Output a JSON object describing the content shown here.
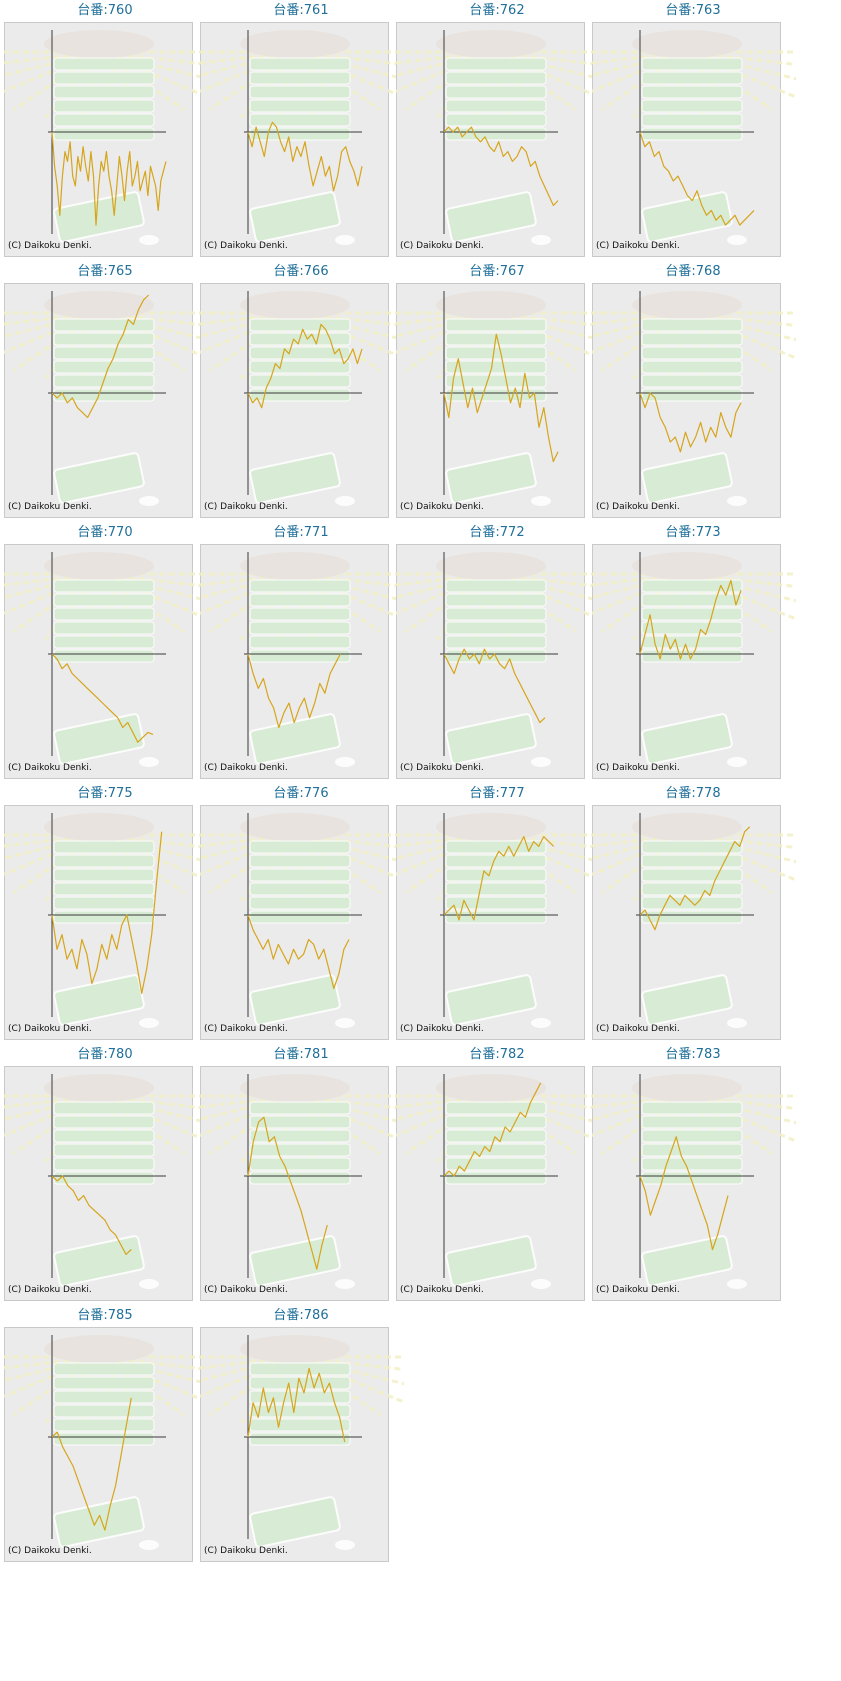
{
  "colors": {
    "background": "#ebebeb",
    "frame": "#c9c9c9",
    "line": "#d6a51c",
    "axis": "#3a3a3a",
    "title": "#1f6f9a",
    "watermark_green": "#d5ecd0",
    "watermark_rays": "#f3f0c4"
  },
  "chart_data": [
    {
      "title": "台番:760",
      "copyright": "(C) Daikoku Denki.",
      "type": "line",
      "y": [
        0.0,
        -0.35,
        -0.55,
        -0.85,
        -0.45,
        -0.2,
        -0.3,
        -0.1,
        -0.45,
        -0.55,
        -0.25,
        -0.4,
        -0.15,
        -0.35,
        -0.5,
        -0.2,
        -0.45,
        -0.95,
        -0.55,
        -0.3,
        -0.4,
        -0.2,
        -0.45,
        -0.6,
        -0.85,
        -0.55,
        -0.25,
        -0.45,
        -0.7,
        -0.4,
        -0.2,
        -0.55,
        -0.45,
        -0.3,
        -0.6,
        -0.5,
        -0.4,
        -0.65,
        -0.35,
        -0.45,
        -0.55,
        -0.8,
        -0.5,
        -0.4,
        -0.3
      ]
    },
    {
      "title": "台番:761",
      "copyright": "(C) Daikoku Denki.",
      "type": "line",
      "y": [
        0.0,
        -0.15,
        0.05,
        -0.1,
        -0.25,
        0.0,
        0.1,
        0.05,
        -0.1,
        -0.2,
        -0.05,
        -0.3,
        -0.15,
        -0.25,
        -0.1,
        -0.35,
        -0.55,
        -0.4,
        -0.25,
        -0.45,
        -0.35,
        -0.6,
        -0.45,
        -0.2,
        -0.15,
        -0.3,
        -0.4,
        -0.55,
        -0.35
      ]
    },
    {
      "title": "台番:762",
      "copyright": "(C) Daikoku Denki.",
      "type": "line",
      "y": [
        0.0,
        0.05,
        0.0,
        0.05,
        -0.05,
        0.0,
        0.05,
        -0.05,
        -0.1,
        -0.05,
        -0.15,
        -0.2,
        -0.1,
        -0.25,
        -0.2,
        -0.3,
        -0.25,
        -0.15,
        -0.2,
        -0.35,
        -0.3,
        -0.45,
        -0.55,
        -0.65,
        -0.75,
        -0.7
      ]
    },
    {
      "title": "台番:763",
      "copyright": "(C) Daikoku Denki.",
      "type": "line",
      "y": [
        0.0,
        -0.15,
        -0.1,
        -0.25,
        -0.2,
        -0.35,
        -0.4,
        -0.5,
        -0.45,
        -0.55,
        -0.65,
        -0.7,
        -0.6,
        -0.75,
        -0.85,
        -0.8,
        -0.9,
        -0.85,
        -0.95,
        -0.9,
        -0.85,
        -0.95,
        -0.9,
        -0.85,
        -0.8
      ]
    },
    {
      "title": "台番:765",
      "copyright": "(C) Daikoku Denki.",
      "type": "line",
      "y": [
        0.0,
        -0.05,
        0.0,
        -0.1,
        -0.05,
        -0.15,
        -0.2,
        -0.25,
        -0.15,
        -0.05,
        0.1,
        0.25,
        0.35,
        0.5,
        0.6,
        0.75,
        0.7,
        0.85,
        0.95,
        1.0
      ]
    },
    {
      "title": "台番:766",
      "copyright": "(C) Daikoku Denki.",
      "type": "line",
      "y": [
        0.0,
        -0.1,
        -0.05,
        -0.15,
        0.05,
        0.15,
        0.3,
        0.25,
        0.45,
        0.4,
        0.55,
        0.5,
        0.65,
        0.55,
        0.6,
        0.5,
        0.7,
        0.65,
        0.55,
        0.4,
        0.45,
        0.3,
        0.35,
        0.45,
        0.3,
        0.45
      ]
    },
    {
      "title": "台番:767",
      "copyright": "(C) Daikoku Denki.",
      "type": "line",
      "y": [
        0.0,
        -0.25,
        0.15,
        0.35,
        0.1,
        -0.15,
        0.05,
        -0.2,
        -0.05,
        0.1,
        0.25,
        0.6,
        0.4,
        0.15,
        -0.1,
        0.05,
        -0.15,
        0.2,
        -0.05,
        0.0,
        -0.35,
        -0.15,
        -0.45,
        -0.7,
        -0.6
      ]
    },
    {
      "title": "台番:768",
      "copyright": "(C) Daikoku Denki.",
      "type": "line",
      "y": [
        0.0,
        -0.15,
        0.0,
        -0.05,
        -0.25,
        -0.35,
        -0.5,
        -0.45,
        -0.6,
        -0.4,
        -0.55,
        -0.45,
        -0.3,
        -0.5,
        -0.35,
        -0.45,
        -0.2,
        -0.35,
        -0.45,
        -0.2,
        -0.1
      ]
    },
    {
      "title": "台番:770",
      "copyright": "(C) Daikoku Denki.",
      "type": "line",
      "y": [
        0.0,
        -0.05,
        -0.15,
        -0.1,
        -0.2,
        -0.25,
        -0.3,
        -0.35,
        -0.4,
        -0.45,
        -0.5,
        -0.55,
        -0.6,
        -0.65,
        -0.75,
        -0.7,
        -0.8,
        -0.9,
        -0.85,
        -0.8,
        -0.82
      ]
    },
    {
      "title": "台番:771",
      "copyright": "(C) Daikoku Denki.",
      "type": "line",
      "y": [
        0.0,
        -0.2,
        -0.35,
        -0.25,
        -0.45,
        -0.55,
        -0.75,
        -0.6,
        -0.5,
        -0.7,
        -0.55,
        -0.45,
        -0.65,
        -0.5,
        -0.3,
        -0.4,
        -0.2,
        -0.1,
        0.0
      ]
    },
    {
      "title": "台番:772",
      "copyright": "(C) Daikoku Denki.",
      "type": "line",
      "y": [
        0.0,
        -0.1,
        -0.2,
        -0.05,
        0.05,
        -0.05,
        0.0,
        -0.1,
        0.05,
        -0.05,
        0.0,
        -0.1,
        -0.15,
        -0.05,
        -0.2,
        -0.3,
        -0.4,
        -0.5,
        -0.6,
        -0.7,
        -0.65
      ]
    },
    {
      "title": "台番:773",
      "copyright": "(C) Daikoku Denki.",
      "type": "line",
      "y": [
        0.0,
        0.2,
        0.4,
        0.1,
        -0.05,
        0.2,
        0.05,
        0.15,
        -0.05,
        0.1,
        -0.05,
        0.05,
        0.25,
        0.2,
        0.35,
        0.55,
        0.7,
        0.6,
        0.75,
        0.5,
        0.65
      ]
    },
    {
      "title": "台番:775",
      "copyright": "(C) Daikoku Denki.",
      "type": "line",
      "y": [
        0.0,
        -0.35,
        -0.2,
        -0.45,
        -0.35,
        -0.55,
        -0.25,
        -0.4,
        -0.7,
        -0.55,
        -0.3,
        -0.45,
        -0.2,
        -0.35,
        -0.1,
        0.0,
        -0.25,
        -0.5,
        -0.8,
        -0.55,
        -0.2,
        0.35,
        0.85
      ]
    },
    {
      "title": "台番:776",
      "copyright": "(C) Daikoku Denki.",
      "type": "line",
      "y": [
        0.0,
        -0.15,
        -0.25,
        -0.35,
        -0.25,
        -0.45,
        -0.3,
        -0.4,
        -0.5,
        -0.35,
        -0.45,
        -0.4,
        -0.25,
        -0.3,
        -0.45,
        -0.35,
        -0.55,
        -0.75,
        -0.6,
        -0.35,
        -0.25
      ]
    },
    {
      "title": "台番:777",
      "copyright": "(C) Daikoku Denki.",
      "type": "line",
      "y": [
        0.0,
        0.05,
        0.1,
        -0.05,
        0.15,
        0.05,
        -0.05,
        0.2,
        0.45,
        0.4,
        0.55,
        0.65,
        0.6,
        0.7,
        0.6,
        0.7,
        0.8,
        0.65,
        0.75,
        0.7,
        0.8,
        0.75,
        0.7
      ]
    },
    {
      "title": "台番:778",
      "copyright": "(C) Daikoku Denki.",
      "type": "line",
      "y": [
        0.0,
        0.05,
        -0.05,
        -0.15,
        0.0,
        0.1,
        0.2,
        0.15,
        0.1,
        0.2,
        0.15,
        0.1,
        0.15,
        0.25,
        0.2,
        0.35,
        0.45,
        0.55,
        0.65,
        0.75,
        0.7,
        0.85,
        0.9
      ]
    },
    {
      "title": "台番:780",
      "copyright": "(C) Daikoku Denki.",
      "type": "line",
      "y": [
        0.0,
        -0.05,
        0.0,
        -0.1,
        -0.15,
        -0.25,
        -0.2,
        -0.3,
        -0.35,
        -0.4,
        -0.45,
        -0.55,
        -0.6,
        -0.7,
        -0.8,
        -0.75
      ]
    },
    {
      "title": "台番:781",
      "copyright": "(C) Daikoku Denki.",
      "type": "line",
      "y": [
        0.0,
        0.35,
        0.55,
        0.6,
        0.35,
        0.4,
        0.2,
        0.1,
        -0.05,
        -0.2,
        -0.35,
        -0.55,
        -0.75,
        -0.95,
        -0.7,
        -0.5
      ]
    },
    {
      "title": "台番:782",
      "copyright": "(C) Daikoku Denki.",
      "type": "line",
      "y": [
        0.0,
        0.05,
        0.0,
        0.1,
        0.05,
        0.15,
        0.25,
        0.2,
        0.3,
        0.25,
        0.4,
        0.35,
        0.5,
        0.45,
        0.55,
        0.65,
        0.6,
        0.75,
        0.85,
        0.95
      ]
    },
    {
      "title": "台番:783",
      "copyright": "(C) Daikoku Denki.",
      "type": "line",
      "y": [
        0.0,
        -0.15,
        -0.4,
        -0.25,
        -0.1,
        0.1,
        0.25,
        0.4,
        0.2,
        0.1,
        -0.05,
        -0.2,
        -0.35,
        -0.5,
        -0.75,
        -0.6,
        -0.4,
        -0.2
      ]
    },
    {
      "title": "台番:785",
      "copyright": "(C) Daikoku Denki.",
      "type": "line",
      "y": [
        0.0,
        0.05,
        -0.1,
        -0.2,
        -0.3,
        -0.45,
        -0.6,
        -0.75,
        -0.9,
        -0.8,
        -0.95,
        -0.7,
        -0.5,
        -0.2,
        0.1,
        0.4
      ]
    },
    {
      "title": "台番:786",
      "copyright": "(C) Daikoku Denki.",
      "type": "line",
      "y": [
        0.0,
        0.35,
        0.2,
        0.5,
        0.25,
        0.4,
        0.1,
        0.35,
        0.55,
        0.25,
        0.6,
        0.45,
        0.7,
        0.5,
        0.65,
        0.45,
        0.55,
        0.35,
        0.2,
        -0.05
      ]
    }
  ]
}
